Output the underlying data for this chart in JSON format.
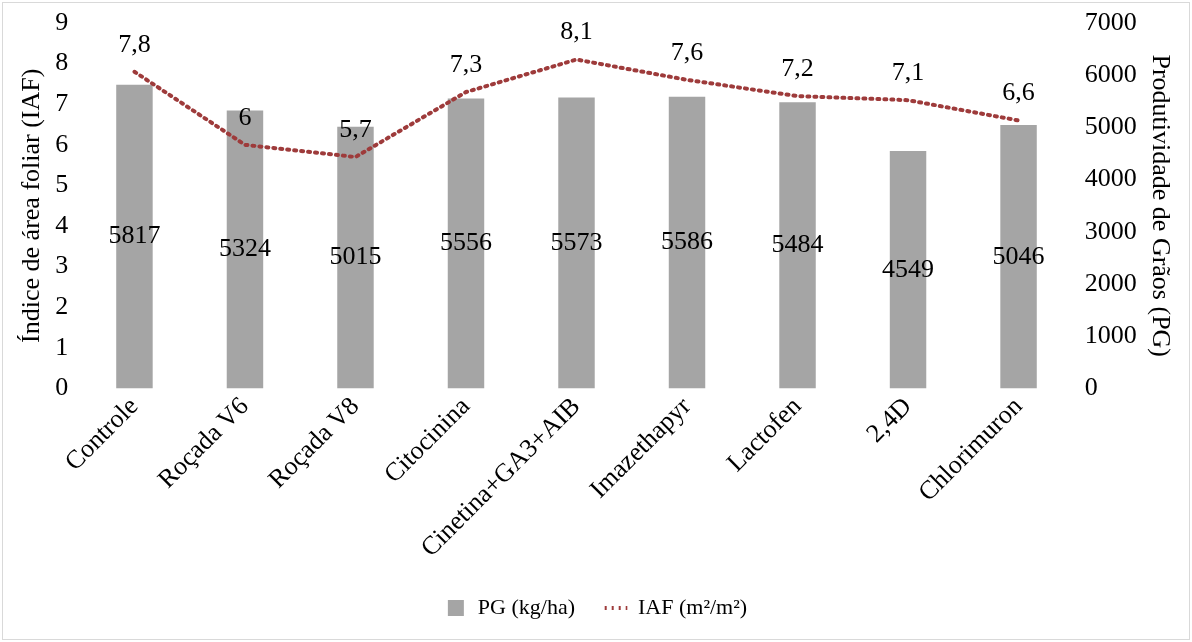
{
  "chart_data": {
    "type": "bar",
    "xlabel": null,
    "ylabel": "Índice de área foliar (IAF)",
    "y2label": "Produtividade de Grãos (PG)",
    "categories": [
      "Controle",
      "Roçada V6",
      "Roçada V8",
      "Citocinina",
      "Cinetina+GA3+AIB",
      "Imazethapyr",
      "Lactofen",
      "2,4D",
      "Chlorimuron"
    ],
    "series": [
      {
        "name": "PG (kg/ha)",
        "axis": "y2",
        "color": "#a5a5a5",
        "values": [
          5817,
          5324,
          5015,
          5556,
          5573,
          5586,
          5484,
          4549,
          5046
        ],
        "value_labels": [
          "5817",
          "5324",
          "5015",
          "5556",
          "5573",
          "5586",
          "5484",
          "4549",
          "5046"
        ]
      },
      {
        "name": "IAF (m²/m²)",
        "type": "line",
        "axis": "y",
        "color": "#9e3b3b",
        "line_style": "dotted",
        "marker": "none",
        "values": [
          7.8,
          6,
          5.7,
          7.3,
          8.1,
          7.6,
          7.2,
          7.1,
          6.6
        ],
        "value_labels": [
          "7,8",
          "6",
          "5,7",
          "7,3",
          "8,1",
          "7,6",
          "7,2",
          "7,1",
          "6,6"
        ]
      }
    ],
    "ylim": [
      0,
      9
    ],
    "yticks": [
      0,
      1,
      2,
      3,
      4,
      5,
      6,
      7,
      8,
      9
    ],
    "y2lim": [
      0,
      7000
    ],
    "y2ticks": [
      0,
      1000,
      2000,
      3000,
      4000,
      5000,
      6000,
      7000
    ],
    "grid": false,
    "legend": "bottom"
  }
}
